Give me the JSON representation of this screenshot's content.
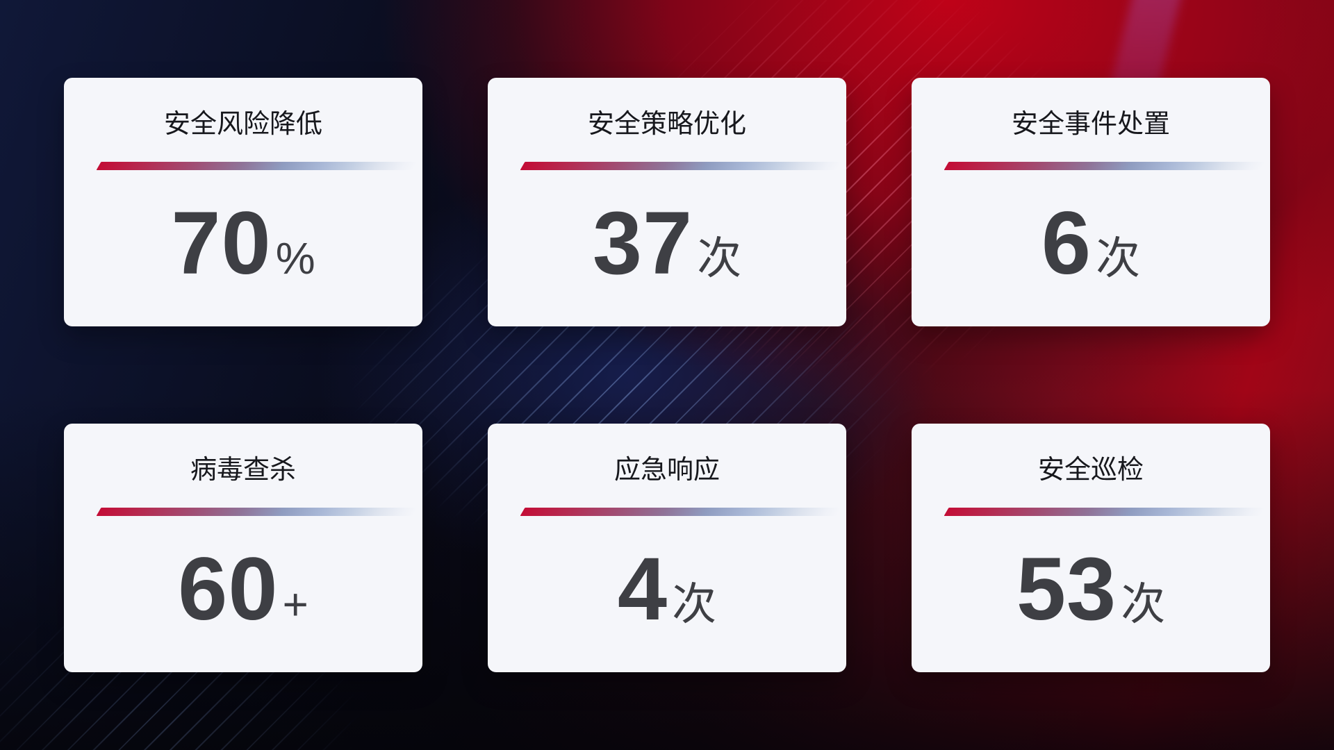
{
  "cards": [
    {
      "title": "安全风险降低",
      "value": "70",
      "suffix": "%"
    },
    {
      "title": "安全策略优化",
      "value": "37",
      "suffix": "次"
    },
    {
      "title": "安全事件处置",
      "value": "6",
      "suffix": "次"
    },
    {
      "title": "病毒查杀",
      "value": "60",
      "suffix": "+"
    },
    {
      "title": "应急响应",
      "value": "4",
      "suffix": "次"
    },
    {
      "title": "安全巡检",
      "value": "53",
      "suffix": "次"
    }
  ],
  "colors": {
    "accent_red": "#c30d36",
    "accent_blue": "#a8b7d6",
    "card_background": "#f5f6fa",
    "title_text": "#17181d",
    "value_text": "#3e3f44",
    "background_navy": "#101838",
    "background_red": "#a10517"
  }
}
